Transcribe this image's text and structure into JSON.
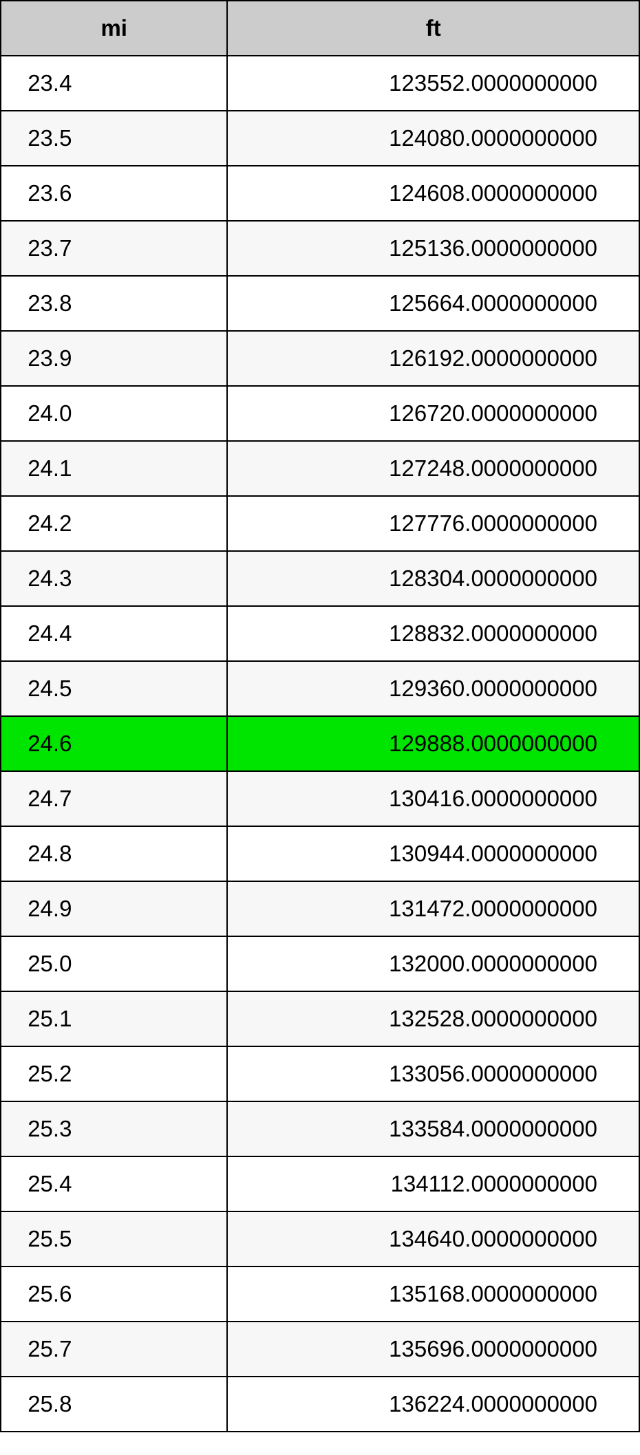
{
  "table": {
    "columns": [
      "mi",
      "ft"
    ],
    "column_widths": [
      "35.5%",
      "64.5%"
    ],
    "header_bg": "#cccccc",
    "stripe_colors": [
      "#ffffff",
      "#f7f7f7"
    ],
    "highlight_color": "#00e500",
    "border_color": "#000000",
    "font_size": 33,
    "highlighted_row_index": 12,
    "rows": [
      {
        "mi": "23.4",
        "ft": "123552.0000000000"
      },
      {
        "mi": "23.5",
        "ft": "124080.0000000000"
      },
      {
        "mi": "23.6",
        "ft": "124608.0000000000"
      },
      {
        "mi": "23.7",
        "ft": "125136.0000000000"
      },
      {
        "mi": "23.8",
        "ft": "125664.0000000000"
      },
      {
        "mi": "23.9",
        "ft": "126192.0000000000"
      },
      {
        "mi": "24.0",
        "ft": "126720.0000000000"
      },
      {
        "mi": "24.1",
        "ft": "127248.0000000000"
      },
      {
        "mi": "24.2",
        "ft": "127776.0000000000"
      },
      {
        "mi": "24.3",
        "ft": "128304.0000000000"
      },
      {
        "mi": "24.4",
        "ft": "128832.0000000000"
      },
      {
        "mi": "24.5",
        "ft": "129360.0000000000"
      },
      {
        "mi": "24.6",
        "ft": "129888.0000000000"
      },
      {
        "mi": "24.7",
        "ft": "130416.0000000000"
      },
      {
        "mi": "24.8",
        "ft": "130944.0000000000"
      },
      {
        "mi": "24.9",
        "ft": "131472.0000000000"
      },
      {
        "mi": "25.0",
        "ft": "132000.0000000000"
      },
      {
        "mi": "25.1",
        "ft": "132528.0000000000"
      },
      {
        "mi": "25.2",
        "ft": "133056.0000000000"
      },
      {
        "mi": "25.3",
        "ft": "133584.0000000000"
      },
      {
        "mi": "25.4",
        "ft": "134112.0000000000"
      },
      {
        "mi": "25.5",
        "ft": "134640.0000000000"
      },
      {
        "mi": "25.6",
        "ft": "135168.0000000000"
      },
      {
        "mi": "25.7",
        "ft": "135696.0000000000"
      },
      {
        "mi": "25.8",
        "ft": "136224.0000000000"
      }
    ]
  }
}
